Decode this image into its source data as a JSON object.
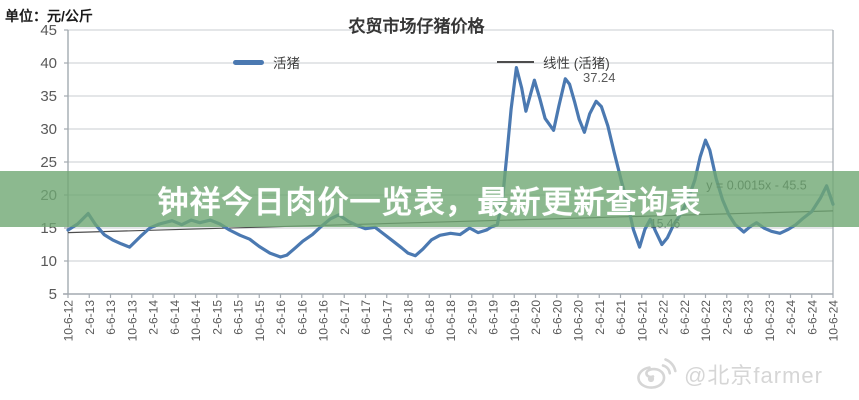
{
  "overlay_banner": {
    "text": "钟祥今日肉价一览表，最新更新查询表",
    "bg_rgba": "rgba(111,168,115,0.8)",
    "text_color": "#ffffff"
  },
  "watermark": {
    "icon": "weibo-logo",
    "text": "@北京farmer",
    "color": "#d6d6d6"
  },
  "chart_data": {
    "type": "line",
    "title": "农贸市场仔猪价格",
    "unit_label": "单位：元/公斤",
    "ylabel": "元/公斤",
    "ylim": [
      5,
      45
    ],
    "y_ticks": [
      45,
      40,
      35,
      30,
      25,
      20,
      15,
      10,
      5
    ],
    "grid": true,
    "legend_position": "top-inside",
    "x_tick_labels": [
      "10-6-12",
      "2-6-13",
      "6-6-13",
      "10-6-13",
      "2-6-14",
      "6-6-14",
      "10-6-14",
      "2-6-15",
      "6-6-15",
      "10-6-15",
      "2-6-16",
      "6-6-16",
      "10-6-16",
      "2-6-17",
      "6-6-17",
      "10-6-17",
      "2-6-18",
      "6-6-18",
      "10-6-18",
      "2-6-19",
      "6-6-19",
      "10-6-19",
      "2-6-20",
      "6-6-20",
      "10-6-20",
      "2-6-21",
      "6-6-21",
      "10-6-21",
      "2-6-22",
      "6-6-22",
      "10-6-22",
      "2-6-23",
      "6-6-23",
      "10-6-23",
      "2-6-24",
      "6-6-24",
      "10-6-24"
    ],
    "legend": [
      {
        "label": "活猪",
        "color": "#4b79b1",
        "style": "thick-line"
      },
      {
        "label": "线性 (活猪)",
        "color": "#4d4d4d",
        "style": "thin-line"
      }
    ],
    "series": [
      {
        "name": "活猪",
        "color": "#4b79b1",
        "width": 3.2,
        "points": [
          [
            0,
            14.7
          ],
          [
            0.45,
            15.6
          ],
          [
            0.95,
            17.2
          ],
          [
            1.3,
            15.5
          ],
          [
            1.7,
            14.0
          ],
          [
            2.1,
            13.2
          ],
          [
            2.5,
            12.6
          ],
          [
            2.9,
            12.1
          ],
          [
            3.4,
            13.7
          ],
          [
            3.85,
            15.0
          ],
          [
            4.3,
            15.6
          ],
          [
            4.9,
            16.1
          ],
          [
            5.35,
            15.5
          ],
          [
            5.8,
            16.2
          ],
          [
            6.2,
            15.8
          ],
          [
            6.7,
            16.2
          ],
          [
            7.15,
            15.6
          ],
          [
            7.6,
            14.7
          ],
          [
            8.1,
            13.9
          ],
          [
            8.55,
            13.3
          ],
          [
            9.0,
            12.2
          ],
          [
            9.5,
            11.2
          ],
          [
            10.0,
            10.6
          ],
          [
            10.3,
            10.9
          ],
          [
            10.7,
            12.0
          ],
          [
            11.05,
            13.0
          ],
          [
            11.5,
            14.0
          ],
          [
            11.9,
            15.2
          ],
          [
            12.35,
            16.4
          ],
          [
            12.75,
            17.0
          ],
          [
            13.2,
            16.0
          ],
          [
            13.6,
            15.4
          ],
          [
            14.0,
            14.9
          ],
          [
            14.45,
            15.1
          ],
          [
            14.9,
            14.0
          ],
          [
            15.3,
            13.0
          ],
          [
            15.7,
            12.0
          ],
          [
            16.0,
            11.2
          ],
          [
            16.35,
            10.8
          ],
          [
            16.7,
            11.8
          ],
          [
            17.1,
            13.2
          ],
          [
            17.5,
            13.9
          ],
          [
            18.0,
            14.2
          ],
          [
            18.45,
            14.0
          ],
          [
            18.9,
            15.0
          ],
          [
            19.3,
            14.3
          ],
          [
            19.7,
            14.7
          ],
          [
            19.95,
            15.2
          ],
          [
            20.2,
            15.5
          ],
          [
            20.45,
            19.5
          ],
          [
            20.65,
            26.0
          ],
          [
            20.85,
            33.0
          ],
          [
            21.1,
            39.3
          ],
          [
            21.35,
            36.2
          ],
          [
            21.55,
            32.7
          ],
          [
            21.95,
            37.4
          ],
          [
            22.2,
            34.6
          ],
          [
            22.45,
            31.6
          ],
          [
            22.85,
            29.8
          ],
          [
            23.1,
            33.5
          ],
          [
            23.4,
            37.6
          ],
          [
            23.6,
            36.8
          ],
          [
            23.85,
            34.0
          ],
          [
            24.05,
            31.5
          ],
          [
            24.3,
            29.5
          ],
          [
            24.55,
            32.3
          ],
          [
            24.85,
            34.2
          ],
          [
            25.1,
            33.4
          ],
          [
            25.4,
            30.5
          ],
          [
            25.7,
            26.5
          ],
          [
            26.05,
            22.0
          ],
          [
            26.35,
            18.5
          ],
          [
            26.6,
            14.8
          ],
          [
            26.9,
            12.1
          ],
          [
            27.15,
            14.8
          ],
          [
            27.4,
            16.3
          ],
          [
            27.65,
            14.5
          ],
          [
            27.95,
            12.5
          ],
          [
            28.2,
            13.5
          ],
          [
            28.5,
            15.5
          ],
          [
            28.85,
            17.2
          ],
          [
            29.2,
            19.5
          ],
          [
            29.5,
            22.3
          ],
          [
            29.75,
            25.8
          ],
          [
            30.0,
            28.3
          ],
          [
            30.2,
            26.8
          ],
          [
            30.5,
            22.5
          ],
          [
            30.8,
            19.3
          ],
          [
            31.1,
            17.0
          ],
          [
            31.4,
            15.5
          ],
          [
            31.8,
            14.4
          ],
          [
            32.1,
            15.2
          ],
          [
            32.4,
            15.8
          ],
          [
            32.75,
            15.0
          ],
          [
            33.1,
            14.5
          ],
          [
            33.5,
            14.2
          ],
          [
            33.9,
            14.8
          ],
          [
            34.25,
            15.5
          ],
          [
            34.6,
            16.5
          ],
          [
            35.0,
            17.5
          ],
          [
            35.4,
            19.5
          ],
          [
            35.7,
            21.4
          ],
          [
            36.0,
            18.6
          ]
        ]
      }
    ],
    "trendline": {
      "name": "线性 (活猪)",
      "color": "#4d4d4d",
      "width": 1.2,
      "points": [
        [
          0,
          14.3
        ],
        [
          36,
          17.6
        ]
      ],
      "equation": "y = 0.0015x - 45.5"
    },
    "annotations": [
      {
        "text": "37.24",
        "t": 25.0,
        "v": 37.8,
        "color": "#595959",
        "size": 13
      },
      {
        "text": "15.46",
        "t": 28.1,
        "v": 15.7,
        "color": "#3a4757",
        "size": 12
      },
      {
        "text": "y = 0.0015x - 45.5",
        "t": 32.4,
        "v": 21.5,
        "color": "#404040",
        "size": 12.5
      }
    ],
    "axis_color": "#a3aab0",
    "grid_color": "#c9cdd0",
    "tick_label_color": "#595959"
  }
}
